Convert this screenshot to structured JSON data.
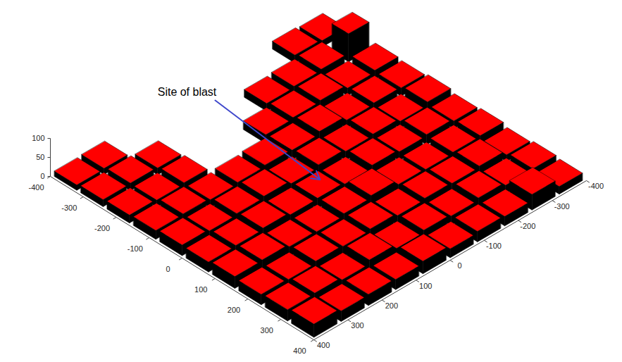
{
  "chart_data": {
    "type": "bar3d",
    "color": "#ff0000",
    "xlim": [
      -400,
      400
    ],
    "ylim": [
      -400,
      400
    ],
    "zlim": [
      0,
      100
    ],
    "xticks": [
      -400,
      -300,
      -200,
      -100,
      0,
      100,
      200,
      300,
      400
    ],
    "yticks": [
      -400,
      -300,
      -200,
      -100,
      0,
      100,
      200,
      300,
      400
    ],
    "zticks": [
      0,
      50,
      100
    ],
    "annotations": [
      {
        "text": "Site of blast",
        "x": 5,
        "y": 0
      }
    ],
    "buildings": [
      {
        "x": [
          -394,
          -326
        ],
        "y": [
          -394,
          -326
        ],
        "z": 20
      },
      {
        "x": [
          -300,
          -250
        ],
        "y": [
          -390,
          -330
        ],
        "z": 85
      },
      {
        "x": [
          -234,
          -166
        ],
        "y": [
          -394,
          -326
        ],
        "z": 28
      },
      {
        "x": [
          -154,
          -86
        ],
        "y": [
          -394,
          -326
        ],
        "z": 24
      },
      {
        "x": [
          -74,
          -6
        ],
        "y": [
          -394,
          -326
        ],
        "z": 30
      },
      {
        "x": [
          6,
          74
        ],
        "y": [
          -394,
          -326
        ],
        "z": 22
      },
      {
        "x": [
          86,
          154
        ],
        "y": [
          -394,
          -326
        ],
        "z": 26
      },
      {
        "x": [
          166,
          234
        ],
        "y": [
          -394,
          -326
        ],
        "z": 18
      },
      {
        "x": [
          246,
          314
        ],
        "y": [
          -394,
          -326
        ],
        "z": 24
      },
      {
        "x": [
          326,
          394
        ],
        "y": [
          -394,
          -326
        ],
        "z": 20
      },
      {
        "x": [
          -394,
          -326
        ],
        "y": [
          -314,
          -246
        ],
        "z": 24
      },
      {
        "x": [
          -314,
          -246
        ],
        "y": [
          -314,
          -246
        ],
        "z": 30
      },
      {
        "x": [
          -234,
          -166
        ],
        "y": [
          -314,
          -246
        ],
        "z": 22
      },
      {
        "x": [
          -154,
          -86
        ],
        "y": [
          -314,
          -246
        ],
        "z": 26
      },
      {
        "x": [
          -74,
          -6
        ],
        "y": [
          -314,
          -246
        ],
        "z": 20
      },
      {
        "x": [
          6,
          74
        ],
        "y": [
          -314,
          -246
        ],
        "z": 28
      },
      {
        "x": [
          86,
          154
        ],
        "y": [
          -314,
          -246
        ],
        "z": 24
      },
      {
        "x": [
          166,
          234
        ],
        "y": [
          -314,
          -246
        ],
        "z": 30
      },
      {
        "x": [
          246,
          314
        ],
        "y": [
          -314,
          -246
        ],
        "z": 22
      },
      {
        "x": [
          326,
          394
        ],
        "y": [
          -314,
          -246
        ],
        "z": 40
      },
      {
        "x": [
          -314,
          -246
        ],
        "y": [
          -234,
          -166
        ],
        "z": 26
      },
      {
        "x": [
          -234,
          -166
        ],
        "y": [
          -234,
          -166
        ],
        "z": 32
      },
      {
        "x": [
          -154,
          -86
        ],
        "y": [
          -234,
          -166
        ],
        "z": 22
      },
      {
        "x": [
          -74,
          -6
        ],
        "y": [
          -234,
          -166
        ],
        "z": 28
      },
      {
        "x": [
          6,
          74
        ],
        "y": [
          -234,
          -166
        ],
        "z": 24
      },
      {
        "x": [
          86,
          154
        ],
        "y": [
          -234,
          -166
        ],
        "z": 20
      },
      {
        "x": [
          166,
          234
        ],
        "y": [
          -234,
          -166
        ],
        "z": 26
      },
      {
        "x": [
          246,
          314
        ],
        "y": [
          -234,
          -166
        ],
        "z": 30
      },
      {
        "x": [
          326,
          394
        ],
        "y": [
          -234,
          -166
        ],
        "z": 24
      },
      {
        "x": [
          -314,
          -246
        ],
        "y": [
          -154,
          -86
        ],
        "z": 22
      },
      {
        "x": [
          -234,
          -166
        ],
        "y": [
          -154,
          -86
        ],
        "z": 28
      },
      {
        "x": [
          -154,
          -86
        ],
        "y": [
          -154,
          -86
        ],
        "z": 34
      },
      {
        "x": [
          -74,
          -6
        ],
        "y": [
          -154,
          -86
        ],
        "z": 24
      },
      {
        "x": [
          6,
          74
        ],
        "y": [
          -154,
          -86
        ],
        "z": 30
      },
      {
        "x": [
          86,
          154
        ],
        "y": [
          -154,
          -86
        ],
        "z": 22
      },
      {
        "x": [
          166,
          234
        ],
        "y": [
          -154,
          -86
        ],
        "z": 28
      },
      {
        "x": [
          246,
          314
        ],
        "y": [
          -154,
          -86
        ],
        "z": 24
      },
      {
        "x": [
          326,
          394
        ],
        "y": [
          -154,
          -86
        ],
        "z": 26
      },
      {
        "x": [
          -234,
          -166
        ],
        "y": [
          -74,
          -6
        ],
        "z": 24
      },
      {
        "x": [
          -154,
          -86
        ],
        "y": [
          -74,
          -6
        ],
        "z": 26
      },
      {
        "x": [
          -74,
          -6
        ],
        "y": [
          -74,
          -6
        ],
        "z": 30
      },
      {
        "x": [
          6,
          74
        ],
        "y": [
          -74,
          -6
        ],
        "z": 22
      },
      {
        "x": [
          86,
          154
        ],
        "y": [
          -74,
          -6
        ],
        "z": 34
      },
      {
        "x": [
          166,
          234
        ],
        "y": [
          -74,
          -6
        ],
        "z": 24
      },
      {
        "x": [
          246,
          314
        ],
        "y": [
          -74,
          -6
        ],
        "z": 28
      },
      {
        "x": [
          326,
          394
        ],
        "y": [
          -74,
          -6
        ],
        "z": 22
      },
      {
        "x": [
          -154,
          -86
        ],
        "y": [
          6,
          74
        ],
        "z": 28
      },
      {
        "x": [
          -74,
          -6
        ],
        "y": [
          6,
          74
        ],
        "z": 22
      },
      {
        "x": [
          6,
          74
        ],
        "y": [
          6,
          74
        ],
        "z": 26
      },
      {
        "x": [
          86,
          154
        ],
        "y": [
          6,
          74
        ],
        "z": 28
      },
      {
        "x": [
          166,
          234
        ],
        "y": [
          6,
          74
        ],
        "z": 30
      },
      {
        "x": [
          246,
          314
        ],
        "y": [
          6,
          74
        ],
        "z": 22
      },
      {
        "x": [
          326,
          394
        ],
        "y": [
          6,
          74
        ],
        "z": 30
      },
      {
        "x": [
          -154,
          -86
        ],
        "y": [
          86,
          154
        ],
        "z": 24
      },
      {
        "x": [
          -74,
          -6
        ],
        "y": [
          86,
          154
        ],
        "z": 30
      },
      {
        "x": [
          6,
          74
        ],
        "y": [
          86,
          154
        ],
        "z": 24
      },
      {
        "x": [
          86,
          154
        ],
        "y": [
          86,
          154
        ],
        "z": 22
      },
      {
        "x": [
          166,
          234
        ],
        "y": [
          86,
          154
        ],
        "z": 26
      },
      {
        "x": [
          246,
          314
        ],
        "y": [
          86,
          154
        ],
        "z": 32
      },
      {
        "x": [
          326,
          394
        ],
        "y": [
          86,
          154
        ],
        "z": 24
      },
      {
        "x": [
          -314,
          -246
        ],
        "y": [
          166,
          234
        ],
        "z": 18
      },
      {
        "x": [
          -234,
          -166
        ],
        "y": [
          166,
          234
        ],
        "z": 22
      },
      {
        "x": [
          -154,
          -86
        ],
        "y": [
          166,
          234
        ],
        "z": 20
      },
      {
        "x": [
          -74,
          -6
        ],
        "y": [
          166,
          234
        ],
        "z": 26
      },
      {
        "x": [
          6,
          74
        ],
        "y": [
          166,
          234
        ],
        "z": 30
      },
      {
        "x": [
          86,
          154
        ],
        "y": [
          166,
          234
        ],
        "z": 24
      },
      {
        "x": [
          166,
          234
        ],
        "y": [
          166,
          234
        ],
        "z": 28
      },
      {
        "x": [
          246,
          314
        ],
        "y": [
          166,
          234
        ],
        "z": 22
      },
      {
        "x": [
          326,
          394
        ],
        "y": [
          166,
          234
        ],
        "z": 26
      },
      {
        "x": [
          -394,
          -326
        ],
        "y": [
          246,
          314
        ],
        "z": 16
      },
      {
        "x": [
          -314,
          -246
        ],
        "y": [
          246,
          314
        ],
        "z": 20
      },
      {
        "x": [
          -234,
          -166
        ],
        "y": [
          246,
          314
        ],
        "z": 18
      },
      {
        "x": [
          -154,
          -86
        ],
        "y": [
          246,
          314
        ],
        "z": 24
      },
      {
        "x": [
          -74,
          -6
        ],
        "y": [
          246,
          314
        ],
        "z": 22
      },
      {
        "x": [
          6,
          74
        ],
        "y": [
          246,
          314
        ],
        "z": 26
      },
      {
        "x": [
          86,
          154
        ],
        "y": [
          246,
          314
        ],
        "z": 30
      },
      {
        "x": [
          166,
          234
        ],
        "y": [
          246,
          314
        ],
        "z": 22
      },
      {
        "x": [
          246,
          314
        ],
        "y": [
          246,
          314
        ],
        "z": 28
      },
      {
        "x": [
          326,
          394
        ],
        "y": [
          246,
          314
        ],
        "z": 24
      },
      {
        "x": [
          -394,
          -326
        ],
        "y": [
          326,
          394
        ],
        "z": 14
      },
      {
        "x": [
          -314,
          -246
        ],
        "y": [
          326,
          394
        ],
        "z": 18
      },
      {
        "x": [
          -234,
          -166
        ],
        "y": [
          326,
          394
        ],
        "z": 20
      },
      {
        "x": [
          -154,
          -86
        ],
        "y": [
          326,
          394
        ],
        "z": 22
      },
      {
        "x": [
          -74,
          -6
        ],
        "y": [
          326,
          394
        ],
        "z": 26
      },
      {
        "x": [
          6,
          74
        ],
        "y": [
          326,
          394
        ],
        "z": 24
      },
      {
        "x": [
          86,
          154
        ],
        "y": [
          326,
          394
        ],
        "z": 28
      },
      {
        "x": [
          166,
          234
        ],
        "y": [
          326,
          394
        ],
        "z": 24
      },
      {
        "x": [
          246,
          314
        ],
        "y": [
          326,
          394
        ],
        "z": 26
      },
      {
        "x": [
          326,
          394
        ],
        "y": [
          326,
          394
        ],
        "z": 30
      }
    ]
  }
}
